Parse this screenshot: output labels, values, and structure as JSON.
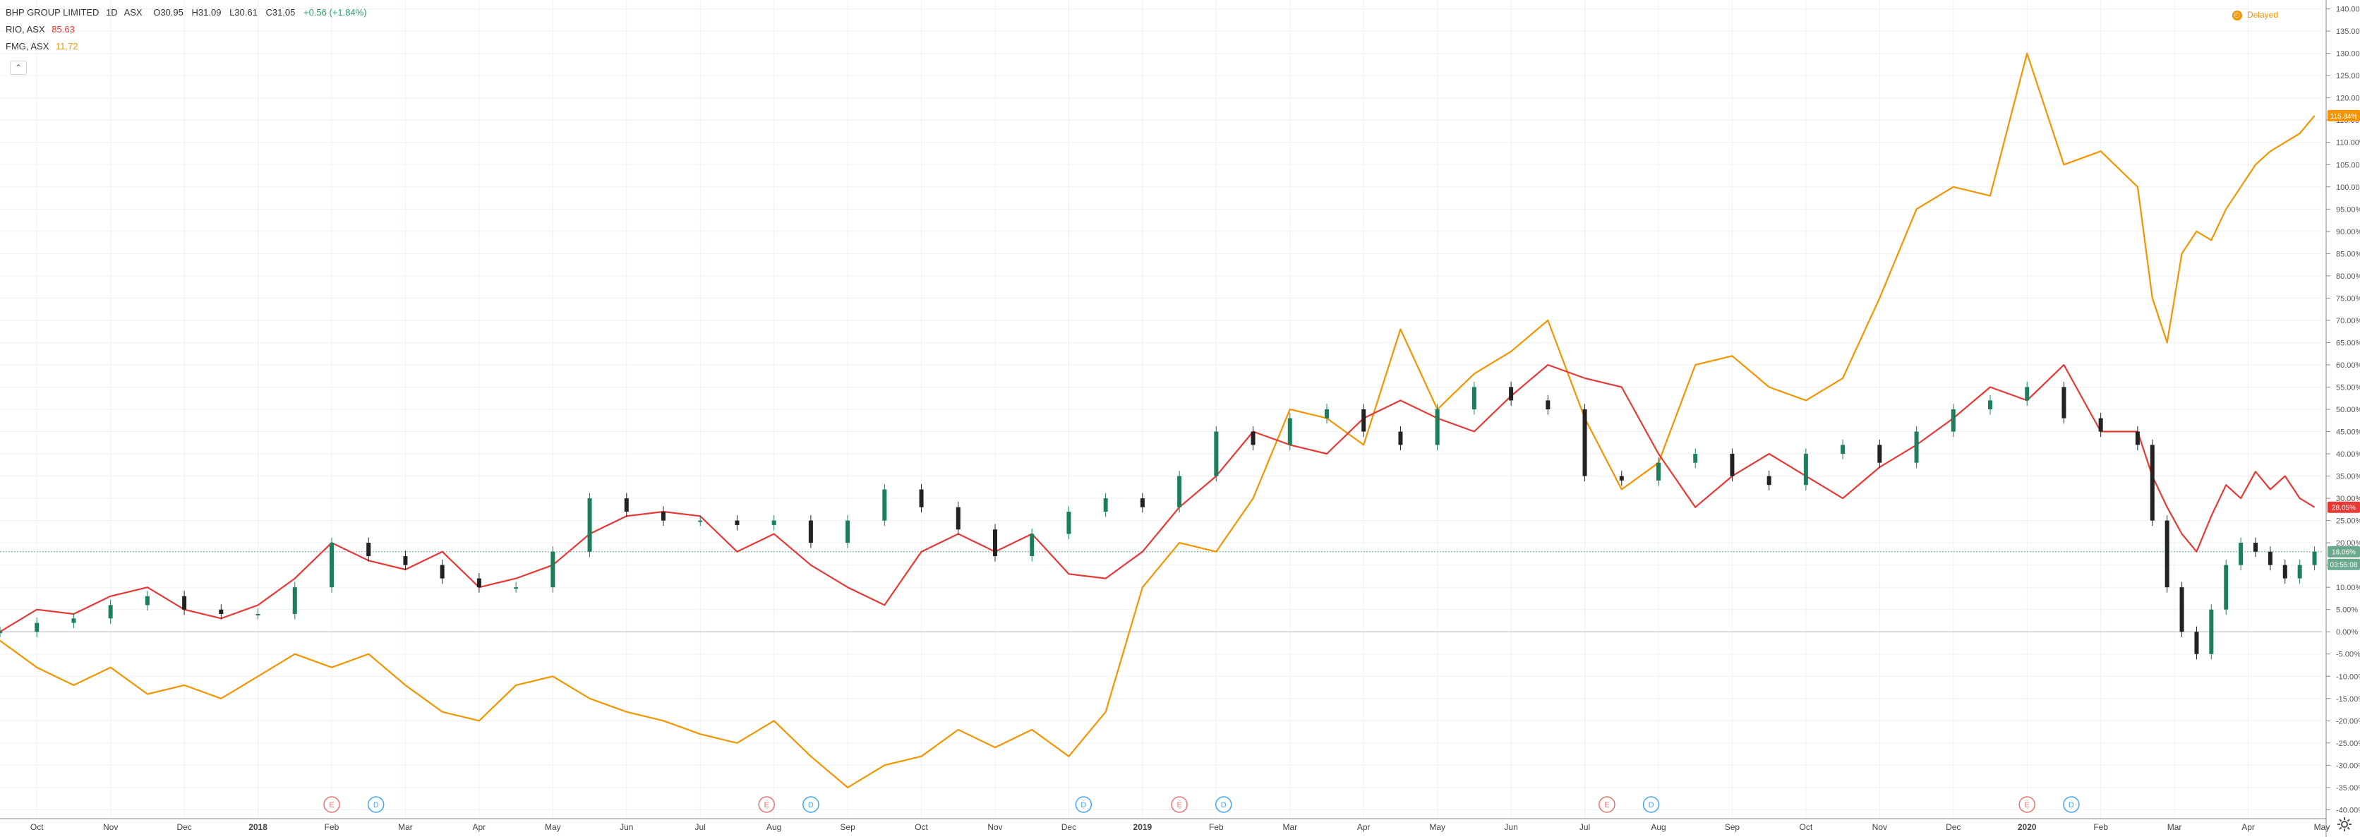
{
  "legend": {
    "main": {
      "name": "BHP GROUP LIMITED",
      "interval": "1D",
      "exchange": "ASX",
      "open": "O30.95",
      "high": "H31.09",
      "low": "L30.61",
      "close": "C31.05",
      "change": "+0.56 (+1.84%)"
    },
    "compare": [
      {
        "label": "RIO, ASX",
        "value": "85.63"
      },
      {
        "label": "FMG, ASX",
        "value": "11.72"
      }
    ]
  },
  "status_text": "Delayed",
  "colors": {
    "bhp_up": "#1b7f5b",
    "bhp_down": "#222222",
    "rio": "#e53935",
    "fmg": "#f39400",
    "grid": "#eef0f4",
    "zero_line": "#c9ccd4",
    "last_price_line": "#6aa990"
  },
  "axis_labels": {
    "bhp_pct": "18.06%",
    "bhp_time": "03:55:08",
    "rio_pct": "28.05%",
    "fmg_pct": "115.84%"
  },
  "chart_data": {
    "type": "line",
    "title": "BHP GROUP LIMITED",
    "x_ticks": [
      "Oct",
      "Nov",
      "Dec",
      "2018",
      "Feb",
      "Mar",
      "Apr",
      "May",
      "Jun",
      "Jul",
      "Aug",
      "Sep",
      "Oct",
      "Nov",
      "Dec",
      "2019",
      "Feb",
      "Mar",
      "Apr",
      "May",
      "Jun",
      "Jul",
      "Aug",
      "Sep",
      "Oct",
      "Nov",
      "Dec",
      "2020",
      "Feb",
      "Mar",
      "Apr",
      "May"
    ],
    "y_ticks": [
      "140.00%",
      "135.00%",
      "130.00%",
      "125.00%",
      "120.00%",
      "115.00%",
      "110.00%",
      "105.00%",
      "100.00%",
      "95.00%",
      "90.00%",
      "85.00%",
      "80.00%",
      "75.00%",
      "70.00%",
      "65.00%",
      "60.00%",
      "55.00%",
      "50.00%",
      "45.00%",
      "40.00%",
      "35.00%",
      "30.00%",
      "25.00%",
      "20.00%",
      "15.00%",
      "10.00%",
      "5.00%",
      "0.00%",
      "-5.00%",
      "-10.00%",
      "-15.00%",
      "-20.00%",
      "-25.00%",
      "-30.00%",
      "-35.00%",
      "-40.00%"
    ],
    "ylim": [
      -42,
      142
    ],
    "y_unit": "%",
    "x_range": [
      0,
      31.5
    ],
    "series": [
      {
        "name": "BHP GROUP LIMITED",
        "style": "candles",
        "x": [
          0,
          0.5,
          1,
          1.5,
          2,
          2.5,
          3,
          3.5,
          4,
          4.5,
          5,
          5.5,
          6,
          6.5,
          7,
          7.5,
          8,
          8.5,
          9,
          9.5,
          10,
          10.5,
          11,
          11.5,
          12,
          12.5,
          13,
          13.5,
          14,
          14.5,
          15,
          15.5,
          16,
          16.5,
          17,
          17.5,
          18,
          18.5,
          19,
          19.5,
          20,
          20.5,
          21,
          21.5,
          22,
          22.5,
          23,
          23.5,
          24,
          24.5,
          25,
          25.5,
          26,
          26.5,
          27,
          27.5,
          28,
          28.5,
          29,
          29.2,
          29.4,
          29.6,
          29.8,
          30,
          30.2,
          30.4,
          30.6,
          30.8,
          31,
          31.2,
          31.4
        ],
        "y": [
          0,
          2,
          3,
          6,
          8,
          5,
          4,
          4,
          10,
          20,
          17,
          15,
          12,
          10,
          10,
          18,
          30,
          27,
          25,
          25,
          24,
          25,
          20,
          25,
          32,
          28,
          23,
          17,
          22,
          27,
          30,
          28,
          35,
          45,
          42,
          48,
          50,
          45,
          42,
          50,
          55,
          52,
          50,
          35,
          34,
          38,
          40,
          35,
          33,
          40,
          42,
          38,
          45,
          50,
          52,
          55,
          48,
          45,
          42,
          25,
          10,
          0,
          -5,
          5,
          15,
          20,
          18,
          15,
          12,
          15,
          18
        ]
      },
      {
        "name": "RIO, ASX",
        "x": [
          0,
          0.5,
          1,
          1.5,
          2,
          2.5,
          3,
          3.5,
          4,
          4.5,
          5,
          5.5,
          6,
          6.5,
          7,
          7.5,
          8,
          8.5,
          9,
          9.5,
          10,
          10.5,
          11,
          11.5,
          12,
          12.5,
          13,
          13.5,
          14,
          14.5,
          15,
          15.5,
          16,
          16.5,
          17,
          17.5,
          18,
          18.5,
          19,
          19.5,
          20,
          20.5,
          21,
          21.5,
          22,
          22.5,
          23,
          23.5,
          24,
          24.5,
          25,
          25.5,
          26,
          26.5,
          27,
          27.5,
          28,
          28.5,
          29,
          29.2,
          29.4,
          29.6,
          29.8,
          30,
          30.2,
          30.4,
          30.6,
          30.8,
          31,
          31.2,
          31.4
        ],
        "y": [
          0,
          5,
          4,
          8,
          10,
          5,
          3,
          6,
          12,
          20,
          16,
          14,
          18,
          10,
          12,
          15,
          22,
          26,
          27,
          26,
          18,
          22,
          15,
          10,
          6,
          18,
          22,
          18,
          22,
          13,
          12,
          18,
          28,
          35,
          45,
          42,
          40,
          48,
          52,
          48,
          45,
          53,
          60,
          57,
          55,
          40,
          28,
          35,
          40,
          35,
          30,
          37,
          42,
          48,
          55,
          52,
          60,
          45,
          45,
          35,
          28,
          22,
          18,
          26,
          33,
          30,
          36,
          32,
          35,
          30,
          28
        ]
      },
      {
        "name": "FMG, ASX",
        "x": [
          0,
          0.5,
          1,
          1.5,
          2,
          2.5,
          3,
          3.5,
          4,
          4.5,
          5,
          5.5,
          6,
          6.5,
          7,
          7.5,
          8,
          8.5,
          9,
          9.5,
          10,
          10.5,
          11,
          11.5,
          12,
          12.5,
          13,
          13.5,
          14,
          14.5,
          15,
          15.5,
          16,
          16.5,
          17,
          17.5,
          18,
          18.5,
          19,
          19.5,
          20,
          20.5,
          21,
          21.5,
          22,
          22.5,
          23,
          23.5,
          24,
          24.5,
          25,
          25.5,
          26,
          26.5,
          27,
          27.5,
          28,
          28.5,
          29,
          29.2,
          29.4,
          29.6,
          29.8,
          30,
          30.2,
          30.4,
          30.6,
          30.8,
          31,
          31.2,
          31.4
        ],
        "y": [
          -2,
          -8,
          -12,
          -8,
          -14,
          -12,
          -15,
          -10,
          -5,
          -8,
          -5,
          -12,
          -18,
          -20,
          -12,
          -10,
          -15,
          -18,
          -20,
          -23,
          -25,
          -20,
          -28,
          -35,
          -30,
          -28,
          -22,
          -26,
          -22,
          -28,
          -18,
          10,
          20,
          18,
          30,
          50,
          48,
          42,
          68,
          50,
          58,
          63,
          70,
          48,
          32,
          38,
          60,
          62,
          55,
          52,
          57,
          75,
          95,
          100,
          98,
          130,
          105,
          108,
          100,
          75,
          65,
          85,
          90,
          88,
          95,
          100,
          105,
          108,
          110,
          112,
          116
        ]
      }
    ],
    "events": [
      {
        "type": "E",
        "x": 4.5
      },
      {
        "type": "D",
        "x": 5.1
      },
      {
        "type": "E",
        "x": 10.4
      },
      {
        "type": "D",
        "x": 11.0
      },
      {
        "type": "D",
        "x": 14.7
      },
      {
        "type": "E",
        "x": 16.0
      },
      {
        "type": "D",
        "x": 16.6
      },
      {
        "type": "E",
        "x": 21.8
      },
      {
        "type": "D",
        "x": 22.4
      },
      {
        "type": "E",
        "x": 27.5
      },
      {
        "type": "D",
        "x": 28.1
      }
    ]
  }
}
